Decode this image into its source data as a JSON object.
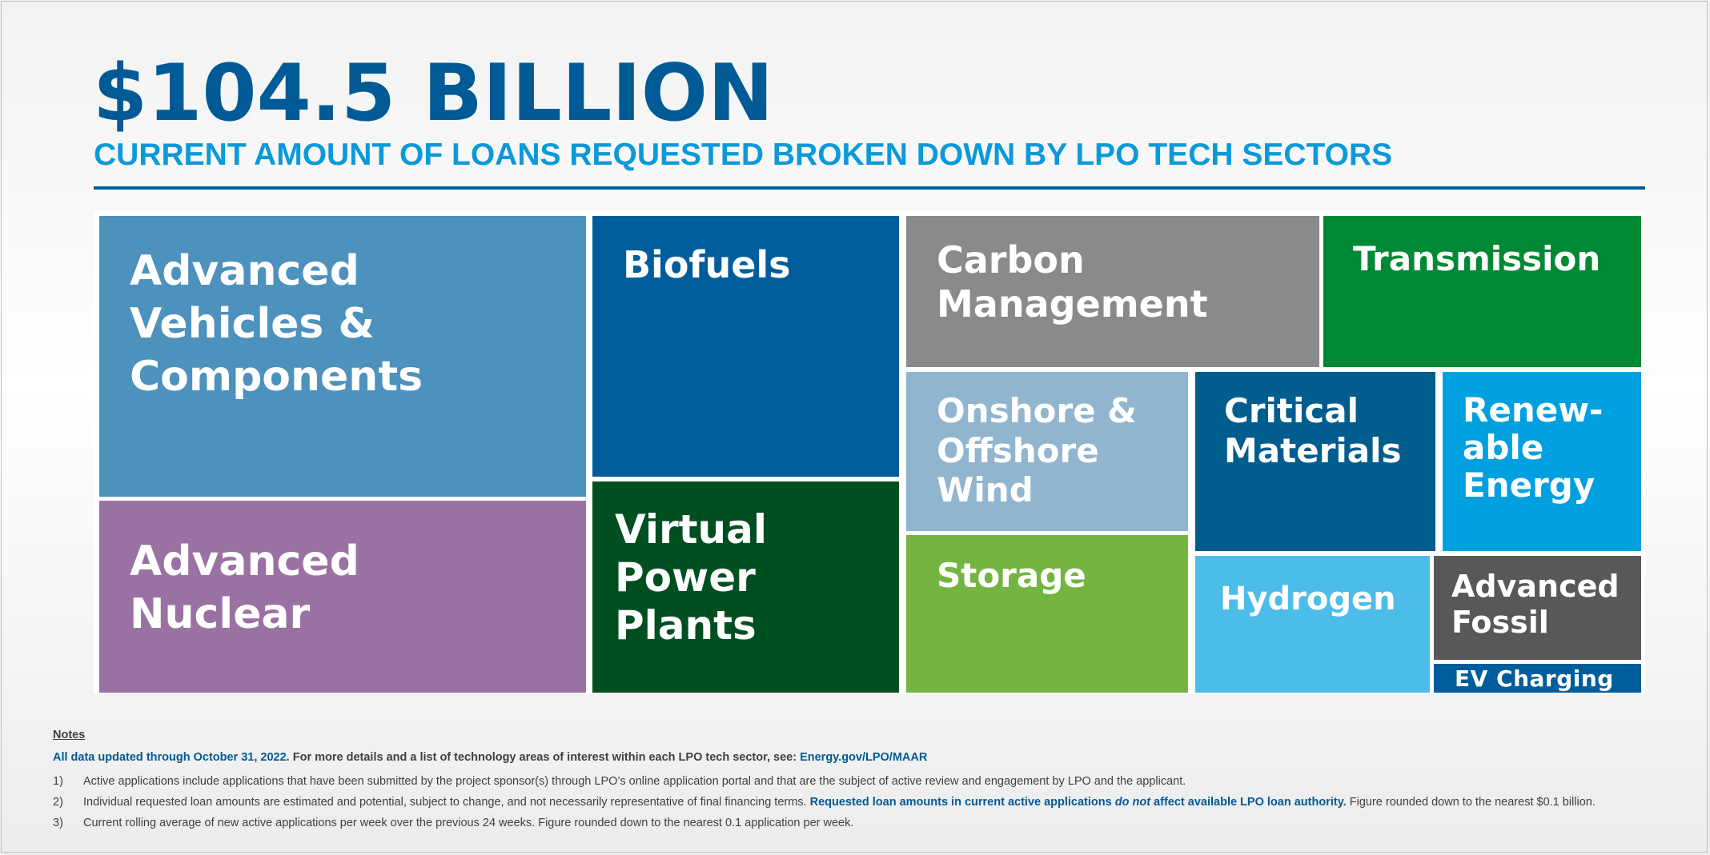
{
  "header": {
    "title": "$104.5 BILLION",
    "subtitle": "CURRENT AMOUNT OF LOANS REQUESTED BROKEN DOWN BY LPO TECH SECTORS"
  },
  "chart_data": {
    "type": "treemap",
    "title": "$104.5 BILLION",
    "subtitle": "CURRENT AMOUNT OF LOANS REQUESTED BROKEN DOWN BY LPO TECH SECTORS",
    "categories": [
      "Advanced Vehicles & Components",
      "Advanced Nuclear",
      "Biofuels",
      "Virtual Power Plants",
      "Carbon Management",
      "Transmission",
      "Onshore & Offshore Wind",
      "Storage",
      "Critical Materials",
      "Renewable Energy",
      "Hydrogen",
      "Advanced Fossil",
      "EV Charging"
    ],
    "labels": [
      "Advanced\nVehicles &\nComponents",
      "Advanced\nNuclear",
      "Biofuels",
      "Virtual\nPower\nPlants",
      "Carbon\nManagement",
      "Transmission",
      "Onshore &\nOffshore\nWind",
      "Storage",
      "Critical\nMaterials",
      "Renew-\nable\nEnergy",
      "Hydrogen",
      "Advanced\nFossil",
      "EV Charging"
    ],
    "relative_area_percent": [
      21.0,
      14.5,
      12.0,
      9.5,
      8.2,
      6.4,
      5.9,
      5.5,
      5.7,
      4.6,
      3.8,
      2.9,
      1.0
    ],
    "colors": [
      "#4d91bd",
      "#9a71a3",
      "#005d9b",
      "#004f20",
      "#898a8c",
      "#008934",
      "#91b5ce",
      "#74b541",
      "#005d8e",
      "#00a0e0",
      "#4cbce9",
      "#58585b",
      "#005d9b"
    ]
  },
  "notes": {
    "title": "Notes",
    "intro_bold": "All data updated through October 31, 2022.",
    "intro_text": " For more details and a list of technology areas of interest within each LPO tech sector, see: ",
    "intro_link": "Energy.gov/LPO/MAAR",
    "items": [
      {
        "num": "1)",
        "text": "Active applications include applications that have been submitted by the project sponsor(s) through LPO’s online application portal and that are the subject of active review and engagement by LPO and the applicant."
      },
      {
        "num": "2)",
        "text_a": "Individual requested loan amounts are estimated and potential, subject to change, and not necessarily representative of final financing terms. ",
        "bold_a": "Requested loan amounts in current active applications ",
        "ital": "do not",
        "bold_b": " affect available LPO loan authority.",
        "text_b": " Figure rounded down to the nearest $0.1 billion."
      },
      {
        "num": "3)",
        "text": "Current rolling average of new active applications per week over the previous 24 weeks. Figure rounded down to the nearest 0.1 application per week."
      }
    ]
  }
}
